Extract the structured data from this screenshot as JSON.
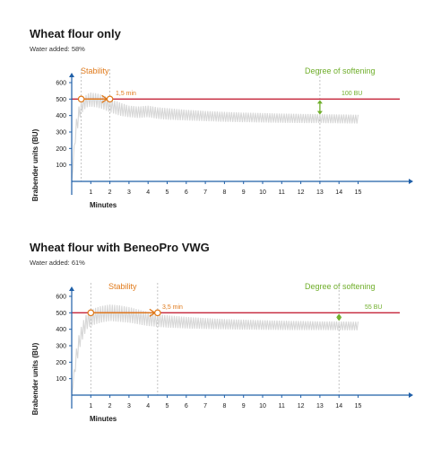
{
  "panels": [
    {
      "title": "Wheat flour only",
      "subtitle": "Water added: 58%",
      "stability_label": "Stability",
      "stability_value": "1,5 min",
      "softening_label": "Degree of softening",
      "softening_value": "100 BU"
    },
    {
      "title": "Wheat flour with BeneoPro VWG",
      "subtitle": "Water added: 61%",
      "stability_label": "Stability",
      "stability_value": "3,5 min",
      "softening_label": "Degree of softening",
      "softening_value": "55 BU"
    }
  ],
  "chart_data": [
    {
      "type": "line",
      "xlabel": "Minutes",
      "ylabel": "Brabender units (BU)",
      "xlim": [
        0,
        15
      ],
      "ylim": [
        0,
        600
      ],
      "x_ticks": [
        "1",
        "2",
        "3",
        "4",
        "5",
        "6",
        "7",
        "8",
        "9",
        "10",
        "11",
        "12",
        "13",
        "14",
        "15"
      ],
      "y_ticks": [
        "100",
        "200",
        "300",
        "400",
        "500",
        "600"
      ],
      "reference_line": 500,
      "stability_start": 0.5,
      "stability_end": 2,
      "softening_at": 13,
      "softening_bu": 100,
      "curve": {
        "x": [
          0,
          0.2,
          0.4,
          0.6,
          0.8,
          1.0,
          1.3,
          1.6,
          2.0,
          2.5,
          3.0,
          3.5,
          4.0,
          4.5,
          5.0,
          6.0,
          7.0,
          8.0,
          9.0,
          10.0,
          11.0,
          12.0,
          13.0,
          14.0,
          15.0
        ],
        "y_upper": [
          0,
          350,
          470,
          510,
          530,
          540,
          535,
          525,
          505,
          480,
          460,
          455,
          460,
          450,
          445,
          435,
          428,
          422,
          418,
          415,
          412,
          410,
          408,
          407,
          405
        ],
        "y_lower": [
          0,
          250,
          380,
          430,
          450,
          455,
          450,
          440,
          420,
          400,
          390,
          385,
          390,
          380,
          375,
          370,
          366,
          362,
          360,
          358,
          356,
          355,
          354,
          353,
          352
        ]
      },
      "colors": {
        "line": "#c5253a",
        "curve": "#d7d7d7",
        "orange": "#e07a1b",
        "green": "#6fae2a",
        "axis": "#1f5fa8"
      }
    },
    {
      "type": "line",
      "xlabel": "Minutes",
      "ylabel": "Brabender units (BU)",
      "xlim": [
        0,
        15
      ],
      "ylim": [
        0,
        600
      ],
      "x_ticks": [
        "1",
        "2",
        "3",
        "4",
        "5",
        "6",
        "7",
        "8",
        "9",
        "10",
        "11",
        "12",
        "13",
        "14",
        "15"
      ],
      "y_ticks": [
        "100",
        "200",
        "300",
        "400",
        "500",
        "600"
      ],
      "reference_line": 500,
      "stability_start": 1,
      "stability_end": 4.5,
      "softening_at": 14,
      "softening_bu": 55,
      "curve": {
        "x": [
          0,
          0.2,
          0.4,
          0.6,
          0.8,
          1.0,
          1.5,
          2.0,
          2.5,
          3.0,
          3.5,
          4.0,
          4.5,
          5.0,
          6.0,
          7.0,
          8.0,
          9.0,
          10.0,
          11.0,
          12.0,
          13.0,
          14.0,
          15.0
        ],
        "y_upper": [
          0,
          250,
          380,
          450,
          500,
          520,
          540,
          550,
          545,
          535,
          520,
          505,
          495,
          485,
          475,
          468,
          462,
          458,
          455,
          452,
          450,
          448,
          447,
          446
        ],
        "y_lower": [
          0,
          150,
          280,
          350,
          400,
          420,
          440,
          450,
          445,
          440,
          430,
          420,
          415,
          410,
          405,
          402,
          400,
          398,
          397,
          396,
          395,
          395,
          394,
          394
        ]
      },
      "colors": {
        "line": "#c5253a",
        "curve": "#d7d7d7",
        "orange": "#e07a1b",
        "green": "#6fae2a",
        "axis": "#1f5fa8"
      }
    }
  ]
}
